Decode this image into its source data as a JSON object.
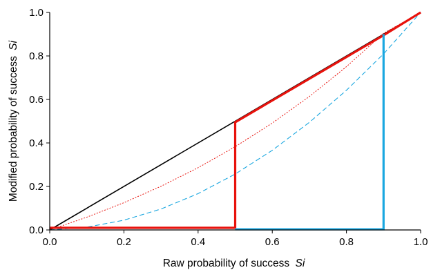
{
  "chart_data": {
    "type": "line",
    "xlabel": "Raw probability of success",
    "xlabel_var": "Si",
    "ylabel": "Modified probability of success",
    "ylabel_var": "Si",
    "xlim": [
      0,
      1
    ],
    "ylim": [
      0,
      1
    ],
    "x_ticks": [
      "0.0",
      "0.2",
      "0.4",
      "0.6",
      "0.8",
      "1.0"
    ],
    "y_ticks": [
      "0.0",
      "0.2",
      "0.4",
      "0.6",
      "0.8",
      "1.0"
    ],
    "grid": false,
    "legend": "none",
    "series": [
      {
        "style": "solid-thin",
        "color": "#000000",
        "points": [
          [
            0,
            0
          ],
          [
            1,
            1
          ]
        ]
      },
      {
        "style": "dotted-thin",
        "color": "#e8120c",
        "points": [
          [
            0,
            0
          ],
          [
            0.1,
            0.0587
          ],
          [
            0.2,
            0.1253
          ],
          [
            0.3,
            0.2008
          ],
          [
            0.4,
            0.2862
          ],
          [
            0.5,
            0.3826
          ],
          [
            0.6,
            0.4913
          ],
          [
            0.7,
            0.6135
          ],
          [
            0.8,
            0.7507
          ],
          [
            0.9,
            0.9041
          ],
          [
            1,
            1
          ]
        ]
      },
      {
        "style": "dashed-thin",
        "color": "#1aa7e0",
        "points": [
          [
            0,
            0
          ],
          [
            0.1,
            0.0128
          ],
          [
            0.2,
            0.0449
          ],
          [
            0.3,
            0.0963
          ],
          [
            0.4,
            0.167
          ],
          [
            0.5,
            0.2569
          ],
          [
            0.6,
            0.3661
          ],
          [
            0.7,
            0.4946
          ],
          [
            0.8,
            0.6423
          ],
          [
            0.9,
            0.8093
          ],
          [
            1,
            1
          ]
        ]
      },
      {
        "style": "solid-thick",
        "color": "#e8120c",
        "points": [
          [
            0,
            0.01
          ],
          [
            0.5,
            0.01
          ],
          [
            0.5,
            0.495
          ],
          [
            0.9,
            0.895
          ],
          [
            1,
            1
          ]
        ]
      },
      {
        "style": "solid-thick",
        "color": "#1aa7e0",
        "points": [
          [
            0.5,
            0.003
          ],
          [
            0.9,
            0.003
          ],
          [
            0.9,
            0.9
          ]
        ]
      }
    ]
  }
}
